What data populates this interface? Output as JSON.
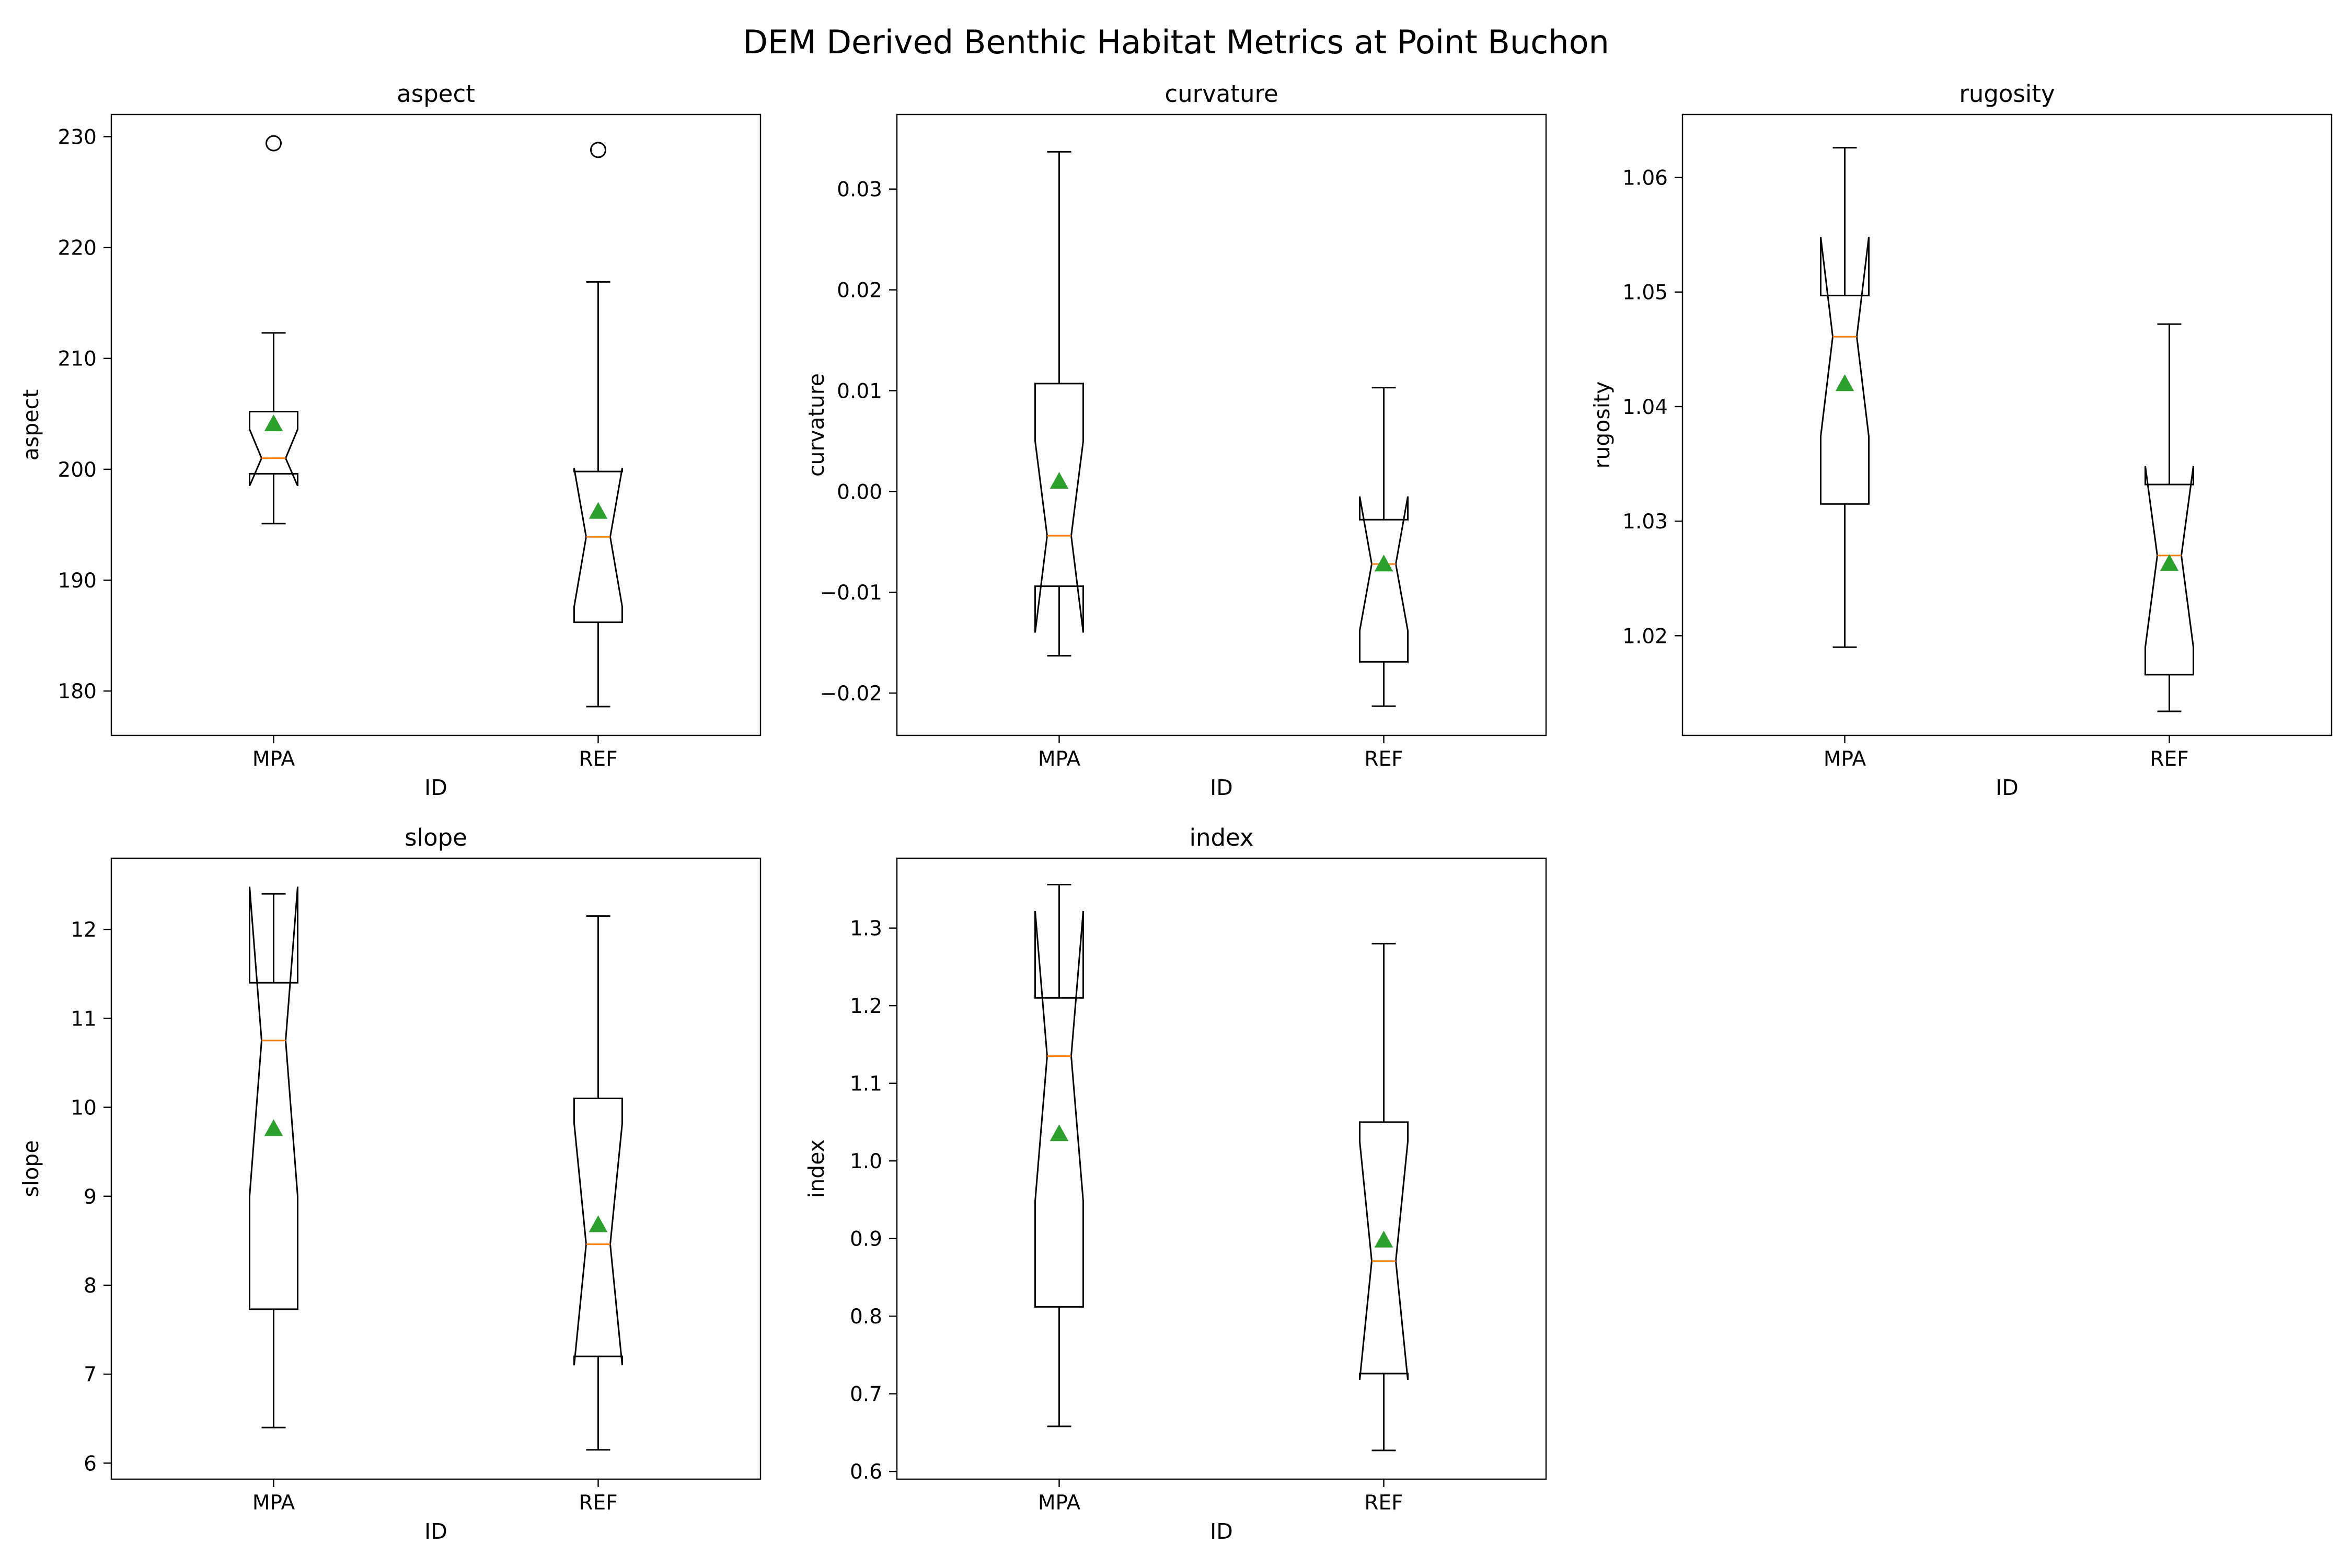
{
  "figure": {
    "title": "DEM Derived Benthic Habitat Metrics at Point Buchon"
  },
  "colors": {
    "box": "#000000",
    "median": "#ff7f0e",
    "mean": "#2ca02c",
    "background": "#ffffff"
  },
  "chart_data": [
    {
      "type": "boxplot",
      "title": "aspect",
      "xlabel": "ID",
      "ylabel": "aspect",
      "categories": [
        "MPA",
        "REF"
      ],
      "ylim": [
        176,
        232
      ],
      "yticks": [
        180,
        190,
        200,
        210,
        220,
        230
      ],
      "tick_decimals": 0,
      "boxes": [
        {
          "name": "MPA",
          "whislo": 195.1,
          "q1": 199.6,
          "med": 201.0,
          "q3": 205.2,
          "whishi": 212.3,
          "notchlo": 198.5,
          "notchhi": 203.6,
          "mean": 204.1,
          "fliers": [
            229.4
          ]
        },
        {
          "name": "REF",
          "whislo": 178.6,
          "q1": 186.2,
          "med": 193.9,
          "q3": 199.8,
          "whishi": 216.9,
          "notchlo": 187.6,
          "notchhi": 200.1,
          "mean": 196.2,
          "fliers": [
            228.8
          ]
        }
      ]
    },
    {
      "type": "boxplot",
      "title": "curvature",
      "xlabel": "ID",
      "ylabel": "curvature",
      "categories": [
        "MPA",
        "REF"
      ],
      "ylim": [
        -0.0242,
        0.0374
      ],
      "yticks": [
        -0.02,
        -0.01,
        0.0,
        0.01,
        0.02,
        0.03
      ],
      "tick_decimals": 2,
      "boxes": [
        {
          "name": "MPA",
          "whislo": -0.0163,
          "q1": -0.0094,
          "med": -0.0044,
          "q3": 0.0107,
          "whishi": 0.0337,
          "notchlo": -0.014,
          "notchhi": 0.005,
          "mean": 0.001,
          "fliers": []
        },
        {
          "name": "REF",
          "whislo": -0.0213,
          "q1": -0.0169,
          "med": -0.0072,
          "q3": -0.0028,
          "whishi": 0.0103,
          "notchlo": -0.0138,
          "notchhi": -0.0005,
          "mean": -0.0072,
          "fliers": []
        }
      ]
    },
    {
      "type": "boxplot",
      "title": "rugosity",
      "xlabel": "ID",
      "ylabel": "rugosity",
      "categories": [
        "MPA",
        "REF"
      ],
      "ylim": [
        1.0113,
        1.0655
      ],
      "yticks": [
        1.02,
        1.03,
        1.04,
        1.05,
        1.06
      ],
      "tick_decimals": 2,
      "boxes": [
        {
          "name": "MPA",
          "whislo": 1.019,
          "q1": 1.0315,
          "med": 1.0461,
          "q3": 1.0497,
          "whishi": 1.0626,
          "notchlo": 1.0374,
          "notchhi": 1.0548,
          "mean": 1.042,
          "fliers": []
        },
        {
          "name": "REF",
          "whislo": 1.0134,
          "q1": 1.0166,
          "med": 1.027,
          "q3": 1.0332,
          "whishi": 1.0472,
          "notchlo": 1.019,
          "notchhi": 1.0348,
          "mean": 1.0263,
          "fliers": []
        }
      ]
    },
    {
      "type": "boxplot",
      "title": "slope",
      "xlabel": "ID",
      "ylabel": "slope",
      "categories": [
        "MPA",
        "REF"
      ],
      "ylim": [
        5.82,
        12.8
      ],
      "yticks": [
        6,
        7,
        8,
        9,
        10,
        11,
        12
      ],
      "tick_decimals": 0,
      "boxes": [
        {
          "name": "MPA",
          "whislo": 6.4,
          "q1": 7.73,
          "med": 10.75,
          "q3": 11.4,
          "whishi": 12.4,
          "notchlo": 9.0,
          "notchhi": 12.48,
          "mean": 9.76,
          "fliers": []
        },
        {
          "name": "REF",
          "whislo": 6.15,
          "q1": 7.2,
          "med": 8.46,
          "q3": 10.1,
          "whishi": 12.15,
          "notchlo": 7.1,
          "notchhi": 9.82,
          "mean": 8.68,
          "fliers": []
        }
      ]
    },
    {
      "type": "boxplot",
      "title": "index",
      "xlabel": "ID",
      "ylabel": "index",
      "categories": [
        "MPA",
        "REF"
      ],
      "ylim": [
        0.59,
        1.39
      ],
      "yticks": [
        0.6,
        0.7,
        0.8,
        0.9,
        1.0,
        1.1,
        1.2,
        1.3
      ],
      "tick_decimals": 1,
      "boxes": [
        {
          "name": "MPA",
          "whislo": 0.658,
          "q1": 0.812,
          "med": 1.135,
          "q3": 1.21,
          "whishi": 1.356,
          "notchlo": 0.948,
          "notchhi": 1.322,
          "mean": 1.035,
          "fliers": []
        },
        {
          "name": "REF",
          "whislo": 0.627,
          "q1": 0.726,
          "med": 0.871,
          "q3": 1.05,
          "whishi": 1.28,
          "notchlo": 0.718,
          "notchhi": 1.025,
          "mean": 0.898,
          "fliers": []
        }
      ]
    }
  ]
}
